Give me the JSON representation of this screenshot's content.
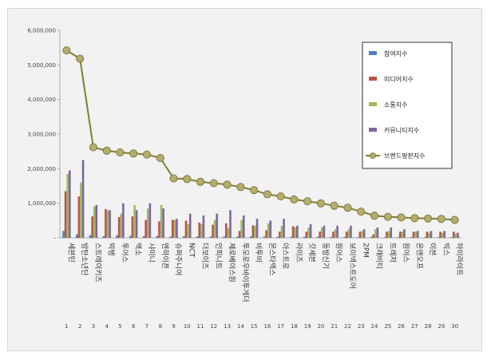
{
  "chart_data": {
    "type": "bar",
    "categories": [
      "세븐틴",
      "방탄소년단",
      "스트레이키즈",
      "빅뱅",
      "투어스",
      "엑소",
      "샤이니",
      "엔하이픈",
      "슈퍼주니어",
      "NCT",
      "더보이즈",
      "인피니트",
      "제로베이스원",
      "투모로우바이투게더",
      "비투비",
      "몬스타엑스",
      "아스트로",
      "라이즈",
      "갓세븐",
      "동방신기",
      "원어스",
      "보이넥스트도어",
      "2PM",
      "크래비티",
      "트레저",
      "원어스",
      "온앤오프",
      "이븐",
      "빅스",
      "하이라이트"
    ],
    "index_labels": [
      "1",
      "2",
      "3",
      "4",
      "5",
      "6",
      "7",
      "8",
      "9",
      "10",
      "11",
      "12",
      "13",
      "14",
      "15",
      "16",
      "17",
      "18",
      "19",
      "20",
      "21",
      "22",
      "23",
      "24",
      "25",
      "26",
      "27",
      "28",
      "29",
      "30"
    ],
    "ylim": [
      0,
      6000000
    ],
    "yticks": [
      {
        "value": 0,
        "label": "-"
      },
      {
        "value": 1000000,
        "label": "1,000,000"
      },
      {
        "value": 2000000,
        "label": "2,000,000"
      },
      {
        "value": 3000000,
        "label": "3,000,000"
      },
      {
        "value": 4000000,
        "label": "4,000,000"
      },
      {
        "value": 5000000,
        "label": "5,000,000"
      },
      {
        "value": 6000000,
        "label": "6,000,000"
      }
    ],
    "grid": false,
    "legend_position": "right",
    "series": [
      {
        "name": "참여지수",
        "kind": "bar",
        "color": "#4f81bd",
        "values": [
          200000,
          100000,
          80000,
          50000,
          80000,
          60000,
          50000,
          60000,
          40000,
          50000,
          40000,
          40000,
          40000,
          40000,
          40000,
          40000,
          30000,
          30000,
          30000,
          30000,
          30000,
          30000,
          20000,
          30000,
          20000,
          20000,
          20000,
          20000,
          20000,
          20000
        ]
      },
      {
        "name": "미디어지수",
        "kind": "bar",
        "color": "#c0504d",
        "values": [
          1350000,
          1200000,
          620000,
          830000,
          600000,
          620000,
          520000,
          480000,
          520000,
          500000,
          440000,
          380000,
          420000,
          200000,
          360000,
          220000,
          180000,
          340000,
          180000,
          180000,
          180000,
          180000,
          180000,
          100000,
          180000,
          180000,
          180000,
          180000,
          180000,
          180000
        ]
      },
      {
        "name": "소통지수",
        "kind": "bar",
        "color": "#9bbb59",
        "values": [
          1850000,
          1600000,
          900000,
          800000,
          700000,
          950000,
          850000,
          950000,
          520000,
          400000,
          400000,
          520000,
          280000,
          520000,
          350000,
          420000,
          350000,
          300000,
          300000,
          300000,
          250000,
          250000,
          200000,
          250000,
          200000,
          180000,
          180000,
          150000,
          150000,
          120000
        ]
      },
      {
        "name": "커뮤니티지수",
        "kind": "bar",
        "color": "#8064a2",
        "values": [
          1950000,
          2250000,
          950000,
          800000,
          1000000,
          800000,
          1000000,
          850000,
          550000,
          700000,
          650000,
          700000,
          800000,
          650000,
          550000,
          500000,
          550000,
          350000,
          400000,
          350000,
          350000,
          350000,
          250000,
          300000,
          300000,
          250000,
          200000,
          200000,
          200000,
          150000
        ]
      },
      {
        "name": "브랜드평판지수",
        "kind": "line",
        "color": "#7f7f2e",
        "values": [
          5420000,
          5180000,
          2620000,
          2520000,
          2470000,
          2440000,
          2410000,
          2310000,
          1720000,
          1700000,
          1620000,
          1580000,
          1540000,
          1470000,
          1380000,
          1260000,
          1200000,
          1110000,
          1060000,
          1000000,
          930000,
          870000,
          760000,
          640000,
          610000,
          590000,
          570000,
          560000,
          550000,
          520000
        ]
      }
    ]
  }
}
